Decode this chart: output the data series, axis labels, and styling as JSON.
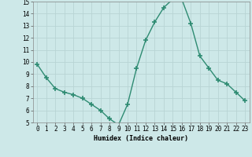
{
  "x": [
    0,
    1,
    2,
    3,
    4,
    5,
    6,
    7,
    8,
    9,
    10,
    11,
    12,
    13,
    14,
    15,
    16,
    17,
    18,
    19,
    20,
    21,
    22,
    23
  ],
  "y": [
    9.8,
    8.7,
    7.8,
    7.5,
    7.3,
    7.0,
    6.5,
    6.0,
    5.3,
    4.8,
    6.5,
    9.5,
    11.8,
    13.3,
    14.5,
    15.2,
    15.2,
    13.2,
    10.5,
    9.5,
    8.5,
    8.2,
    7.5,
    6.8
  ],
  "line_color": "#2e8b72",
  "marker": "+",
  "marker_size": 4,
  "xlabel": "Humidex (Indice chaleur)",
  "ylim": [
    5,
    15
  ],
  "xlim_min": -0.5,
  "xlim_max": 23.5,
  "bg_color": "#cde8e8",
  "grid_color_major": "#b8d4d4",
  "grid_color_minor": "#d0e6e6",
  "yticks": [
    5,
    6,
    7,
    8,
    9,
    10,
    11,
    12,
    13,
    14,
    15
  ],
  "xticks": [
    0,
    1,
    2,
    3,
    4,
    5,
    6,
    7,
    8,
    9,
    10,
    11,
    12,
    13,
    14,
    15,
    16,
    17,
    18,
    19,
    20,
    21,
    22,
    23
  ],
  "xlabel_fontsize": 6,
  "tick_fontsize": 5.5,
  "linewidth": 1.0
}
